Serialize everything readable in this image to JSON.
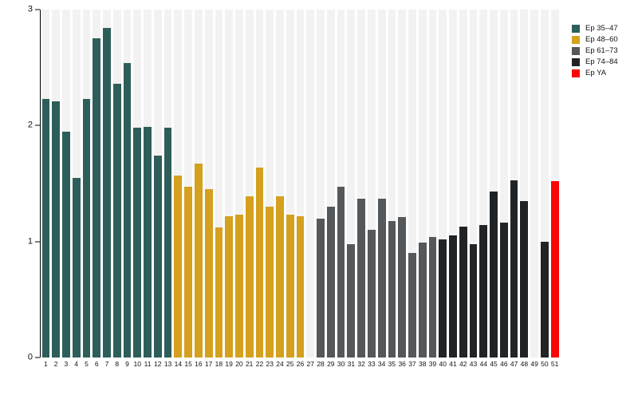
{
  "chart_data": {
    "type": "bar",
    "title": "",
    "xlabel": "",
    "ylabel": "",
    "ylim": [
      0,
      3
    ],
    "yticks": [
      "0",
      "1",
      "2",
      "3"
    ],
    "grid": false,
    "legend_position": "top-right",
    "stripe_color": "#F2F2F2",
    "axis_color": "#000000",
    "categories": [
      "1",
      "2",
      "3",
      "4",
      "5",
      "6",
      "7",
      "8",
      "9",
      "10",
      "11",
      "12",
      "13",
      "14",
      "15",
      "16",
      "17",
      "18",
      "19",
      "20",
      "21",
      "22",
      "23",
      "24",
      "25",
      "26",
      "27",
      "28",
      "29",
      "30",
      "31",
      "32",
      "33",
      "34",
      "35",
      "36",
      "37",
      "38",
      "39",
      "40",
      "41",
      "42",
      "43",
      "44",
      "45",
      "46",
      "47",
      "48",
      "49",
      "50",
      "51"
    ],
    "values": [
      2.23,
      2.21,
      1.95,
      1.55,
      2.23,
      2.75,
      2.84,
      2.36,
      2.54,
      1.98,
      1.99,
      1.74,
      1.98,
      1.57,
      1.47,
      1.67,
      1.45,
      1.12,
      1.22,
      1.23,
      1.39,
      1.64,
      1.3,
      1.39,
      1.23,
      1.22,
      null,
      1.2,
      1.3,
      1.47,
      0.98,
      1.37,
      1.1,
      1.37,
      1.18,
      1.21,
      0.9,
      0.99,
      1.04,
      1.02,
      1.05,
      1.13,
      0.98,
      1.14,
      1.43,
      1.16,
      1.53,
      1.35,
      null,
      1.0,
      1.52
    ],
    "group_sizes": [
      13,
      13,
      13,
      11,
      1
    ],
    "legend": [
      {
        "label": "Ep 35–47",
        "color": "#2E5E5A"
      },
      {
        "label": "Ep 48–60",
        "color": "#D4A01D"
      },
      {
        "label": "Ep 61–73",
        "color": "#54585A"
      },
      {
        "label": "Ep 74–84",
        "color": "#212426"
      },
      {
        "label": "Ep YA",
        "color": "#FA0505"
      }
    ]
  }
}
